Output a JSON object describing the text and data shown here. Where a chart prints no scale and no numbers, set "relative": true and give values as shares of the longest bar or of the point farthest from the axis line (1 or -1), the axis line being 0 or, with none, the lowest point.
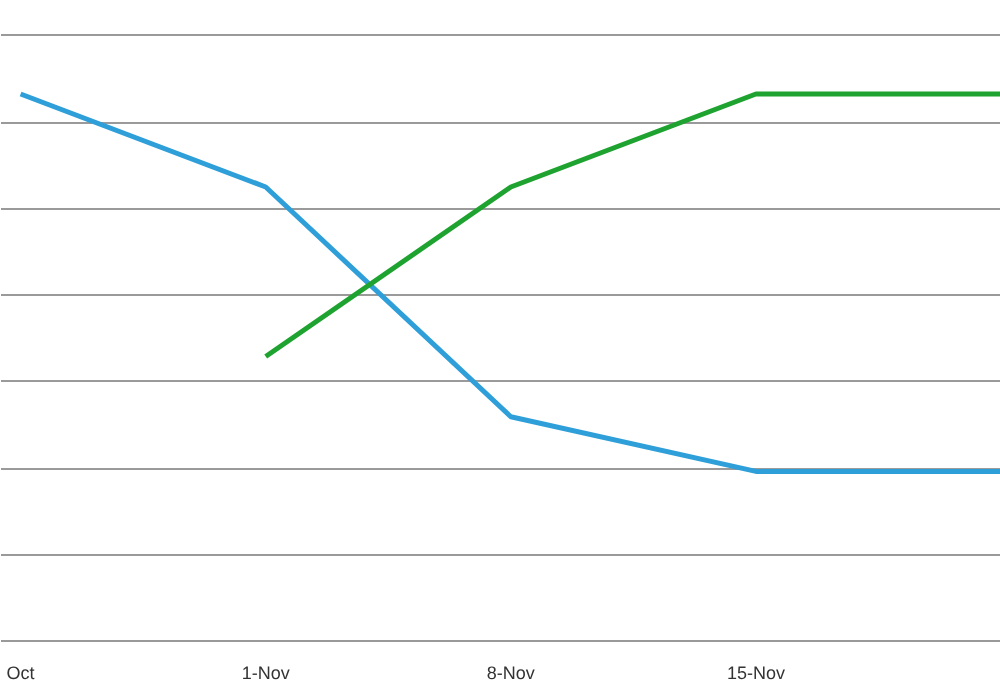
{
  "chart_data": {
    "type": "line",
    "relative": true,
    "categories": [
      "Oct",
      "1-Nov",
      "8-Nov",
      "15-Nov",
      null
    ],
    "series": [
      {
        "color": "#2e9fd8",
        "values": [
          1.0,
          0.83,
          0.41,
          0.31,
          0.31
        ]
      },
      {
        "color": "#1fa330",
        "values": [
          null,
          0.52,
          0.83,
          1.0,
          1.0
        ]
      }
    ],
    "grid": "y",
    "marker": "none",
    "line_style": "solid"
  }
}
